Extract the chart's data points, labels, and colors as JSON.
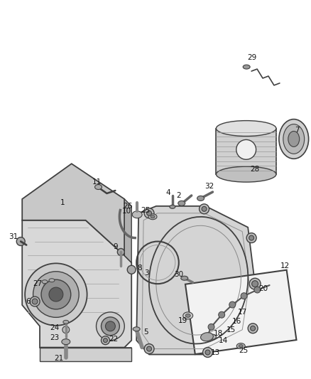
{
  "background_color": "#ffffff",
  "fig_width": 4.38,
  "fig_height": 5.33,
  "dpi": 100,
  "line_color": "#404040",
  "fill_light": "#e0e0e0",
  "fill_mid": "#c0c0c0",
  "fill_dark": "#909090"
}
